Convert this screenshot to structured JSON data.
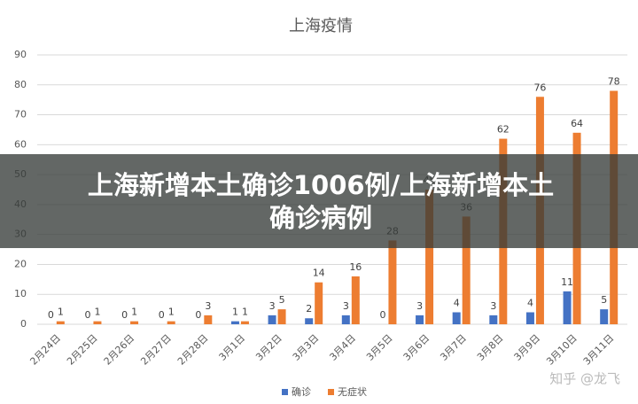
{
  "chart_data": {
    "type": "bar",
    "title": "上海疫情",
    "categories": [
      "2月24日",
      "2月25日",
      "2月26日",
      "2月27日",
      "2月28日",
      "3月1日",
      "3月2日",
      "3月3日",
      "3月4日",
      "3月5日",
      "3月6日",
      "3月7日",
      "3月8日",
      "3月9日",
      "3月10日",
      "3月11日"
    ],
    "series": [
      {
        "name": "确诊",
        "color": "#4472c4",
        "values": [
          0,
          0,
          0,
          0,
          0,
          1,
          3,
          2,
          3,
          0,
          3,
          4,
          3,
          4,
          11,
          5
        ]
      },
      {
        "name": "无症状",
        "color": "#ed7d31",
        "values": [
          1,
          1,
          1,
          1,
          3,
          1,
          5,
          14,
          16,
          28,
          45,
          36,
          62,
          76,
          64,
          78
        ]
      }
    ],
    "ylim": [
      0,
      90
    ],
    "yticks": [
      0,
      10,
      20,
      30,
      40,
      50,
      60,
      70,
      80,
      90
    ],
    "grid": true,
    "legend": "bottom"
  },
  "overlay": {
    "lines": [
      "上海新增本土确诊1006例/上海新增本土",
      "确诊病例"
    ]
  },
  "watermark": "知乎 @龙飞"
}
